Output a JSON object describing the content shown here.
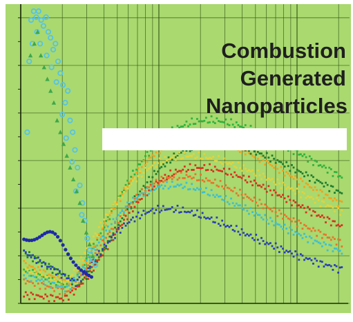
{
  "chart_data": {
    "type": "scatter",
    "title_lines": [
      "Combustion",
      "Generated",
      "Nanoparticles"
    ],
    "xlabel": "",
    "ylabel": "",
    "grid": true,
    "background": "#a9d96f",
    "gridline_color": "#2c4c10",
    "xlim": [
      0,
      100
    ],
    "ylim": [
      0,
      100
    ],
    "series": [
      {
        "color": "#55c3e6",
        "marker": "circle-open",
        "points": [
          [
            3.2,
            96
          ],
          [
            4.0,
            99
          ],
          [
            4.8,
            97
          ],
          [
            5.5,
            99
          ],
          [
            6.3,
            96
          ],
          [
            7.0,
            94
          ],
          [
            7.8,
            97
          ],
          [
            8.5,
            92
          ],
          [
            9.2,
            90
          ],
          [
            10.0,
            86
          ],
          [
            10.7,
            88
          ],
          [
            11.5,
            82
          ],
          [
            12.2,
            78
          ],
          [
            13.0,
            74
          ],
          [
            13.7,
            68
          ],
          [
            14.5,
            72
          ],
          [
            15.2,
            62
          ],
          [
            16.0,
            58
          ],
          [
            16.7,
            52
          ],
          [
            17.5,
            46
          ],
          [
            18.2,
            40
          ],
          [
            19.0,
            34
          ],
          [
            19.7,
            28
          ],
          [
            20.5,
            22
          ],
          [
            21.2,
            18
          ],
          [
            22.0,
            15
          ],
          [
            23.0,
            13
          ],
          [
            2.0,
            58
          ],
          [
            2.6,
            82
          ],
          [
            3.6,
            88
          ],
          [
            5.0,
            92
          ],
          [
            6.0,
            88
          ],
          [
            8.0,
            84
          ],
          [
            9.5,
            80
          ],
          [
            11.0,
            75
          ],
          [
            12.8,
            64
          ],
          [
            14.0,
            56
          ],
          [
            15.8,
            48
          ],
          [
            17.0,
            38
          ],
          [
            18.8,
            30
          ]
        ]
      },
      {
        "color": "#3ea84a",
        "marker": "triangle",
        "points": [
          [
            3.0,
            84
          ],
          [
            4.2,
            88
          ],
          [
            5.2,
            92
          ],
          [
            6.2,
            84
          ],
          [
            7.2,
            80
          ],
          [
            8.2,
            76
          ],
          [
            9.2,
            72
          ],
          [
            10.2,
            68
          ],
          [
            11.2,
            62
          ],
          [
            12.2,
            58
          ],
          [
            13.2,
            54
          ],
          [
            14.2,
            50
          ],
          [
            15.2,
            46
          ],
          [
            16.2,
            42
          ],
          [
            17.2,
            38
          ],
          [
            18.2,
            34
          ],
          [
            19.2,
            28
          ],
          [
            20.2,
            24
          ],
          [
            21.2,
            20
          ],
          [
            22.2,
            16
          ]
        ]
      }
    ]
  }
}
